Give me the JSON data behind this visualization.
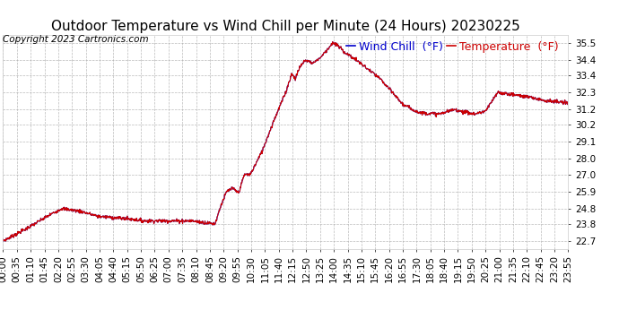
{
  "title": "Outdoor Temperature vs Wind Chill per Minute (24 Hours) 20230225",
  "copyright": "Copyright 2023 Cartronics.com",
  "legend_wind_chill": "Wind Chill  (°F)",
  "legend_temperature": "Temperature  (°F)",
  "wind_chill_color": "#0000cc",
  "temperature_color": "#cc0000",
  "background_color": "#ffffff",
  "plot_bg_color": "#ffffff",
  "grid_color": "#aaaaaa",
  "y_ticks": [
    22.7,
    23.8,
    24.8,
    25.9,
    27.0,
    28.0,
    29.1,
    30.2,
    31.2,
    32.3,
    33.4,
    34.4,
    35.5
  ],
  "y_min": 22.2,
  "y_max": 36.0,
  "x_tick_labels": [
    "00:00",
    "00:35",
    "01:10",
    "01:45",
    "02:20",
    "02:55",
    "03:30",
    "04:05",
    "04:40",
    "05:15",
    "05:50",
    "06:25",
    "07:00",
    "07:35",
    "08:10",
    "08:45",
    "09:20",
    "09:55",
    "10:30",
    "11:05",
    "11:40",
    "12:15",
    "12:50",
    "13:25",
    "14:00",
    "14:35",
    "15:10",
    "15:45",
    "16:20",
    "16:55",
    "17:30",
    "18:05",
    "18:40",
    "19:15",
    "19:50",
    "20:25",
    "21:00",
    "21:35",
    "22:10",
    "22:45",
    "23:20",
    "23:55"
  ],
  "title_fontsize": 11,
  "copyright_fontsize": 7.5,
  "legend_fontsize": 9,
  "tick_label_fontsize": 7.5,
  "segments": [
    {
      "t0": 0,
      "t1": 60,
      "v0": 22.7,
      "v1": 23.5
    },
    {
      "t0": 60,
      "t1": 120,
      "v0": 23.5,
      "v1": 24.4
    },
    {
      "t0": 120,
      "t1": 150,
      "v0": 24.4,
      "v1": 24.8
    },
    {
      "t0": 150,
      "t1": 200,
      "v0": 24.8,
      "v1": 24.6
    },
    {
      "t0": 200,
      "t1": 240,
      "v0": 24.6,
      "v1": 24.3
    },
    {
      "t0": 240,
      "t1": 330,
      "v0": 24.3,
      "v1": 24.1
    },
    {
      "t0": 330,
      "t1": 360,
      "v0": 24.1,
      "v1": 24.0
    },
    {
      "t0": 360,
      "t1": 480,
      "v0": 24.0,
      "v1": 24.0
    },
    {
      "t0": 480,
      "t1": 540,
      "v0": 24.0,
      "v1": 23.8
    },
    {
      "t0": 540,
      "t1": 555,
      "v0": 23.8,
      "v1": 25.0
    },
    {
      "t0": 555,
      "t1": 570,
      "v0": 25.0,
      "v1": 25.9
    },
    {
      "t0": 570,
      "t1": 585,
      "v0": 25.9,
      "v1": 26.1
    },
    {
      "t0": 585,
      "t1": 600,
      "v0": 26.1,
      "v1": 25.8
    },
    {
      "t0": 600,
      "t1": 615,
      "v0": 25.8,
      "v1": 27.0
    },
    {
      "t0": 615,
      "t1": 630,
      "v0": 27.0,
      "v1": 27.0
    },
    {
      "t0": 630,
      "t1": 660,
      "v0": 27.0,
      "v1": 28.5
    },
    {
      "t0": 660,
      "t1": 690,
      "v0": 28.5,
      "v1": 30.5
    },
    {
      "t0": 690,
      "t1": 720,
      "v0": 30.5,
      "v1": 32.3
    },
    {
      "t0": 720,
      "t1": 735,
      "v0": 32.3,
      "v1": 33.5
    },
    {
      "t0": 735,
      "t1": 745,
      "v0": 33.5,
      "v1": 33.2
    },
    {
      "t0": 745,
      "t1": 755,
      "v0": 33.2,
      "v1": 33.9
    },
    {
      "t0": 755,
      "t1": 770,
      "v0": 33.9,
      "v1": 34.4
    },
    {
      "t0": 770,
      "t1": 790,
      "v0": 34.4,
      "v1": 34.2
    },
    {
      "t0": 790,
      "t1": 810,
      "v0": 34.2,
      "v1": 34.6
    },
    {
      "t0": 810,
      "t1": 840,
      "v0": 34.6,
      "v1": 35.5
    },
    {
      "t0": 840,
      "t1": 855,
      "v0": 35.5,
      "v1": 35.3
    },
    {
      "t0": 855,
      "t1": 870,
      "v0": 35.3,
      "v1": 34.9
    },
    {
      "t0": 870,
      "t1": 900,
      "v0": 34.9,
      "v1": 34.4
    },
    {
      "t0": 900,
      "t1": 960,
      "v0": 34.4,
      "v1": 33.2
    },
    {
      "t0": 960,
      "t1": 1020,
      "v0": 33.2,
      "v1": 31.5
    },
    {
      "t0": 1020,
      "t1": 1060,
      "v0": 31.5,
      "v1": 31.0
    },
    {
      "t0": 1060,
      "t1": 1110,
      "v0": 31.0,
      "v1": 30.9
    },
    {
      "t0": 1110,
      "t1": 1150,
      "v0": 30.9,
      "v1": 31.2
    },
    {
      "t0": 1150,
      "t1": 1200,
      "v0": 31.2,
      "v1": 30.9
    },
    {
      "t0": 1200,
      "t1": 1230,
      "v0": 30.9,
      "v1": 31.1
    },
    {
      "t0": 1230,
      "t1": 1260,
      "v0": 31.1,
      "v1": 32.3
    },
    {
      "t0": 1260,
      "t1": 1290,
      "v0": 32.3,
      "v1": 32.2
    },
    {
      "t0": 1290,
      "t1": 1340,
      "v0": 32.2,
      "v1": 32.0
    },
    {
      "t0": 1340,
      "t1": 1380,
      "v0": 32.0,
      "v1": 31.8
    },
    {
      "t0": 1380,
      "t1": 1440,
      "v0": 31.8,
      "v1": 31.6
    }
  ]
}
